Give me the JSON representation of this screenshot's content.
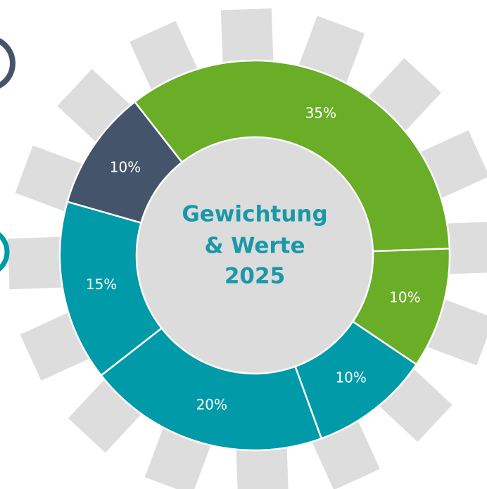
{
  "chart_data": {
    "type": "donut",
    "title_lines": [
      "Gewichtung",
      "& Werte",
      "2025"
    ],
    "values": [
      35,
      10,
      10,
      20,
      15,
      10
    ],
    "value_labels": [
      "35%",
      "10%",
      "10%",
      "20%",
      "15%",
      "10%"
    ],
    "colors": [
      "#6aad27",
      "#6aad27",
      "#009aa8",
      "#009aa8",
      "#009aa8",
      "#44546a"
    ]
  }
}
